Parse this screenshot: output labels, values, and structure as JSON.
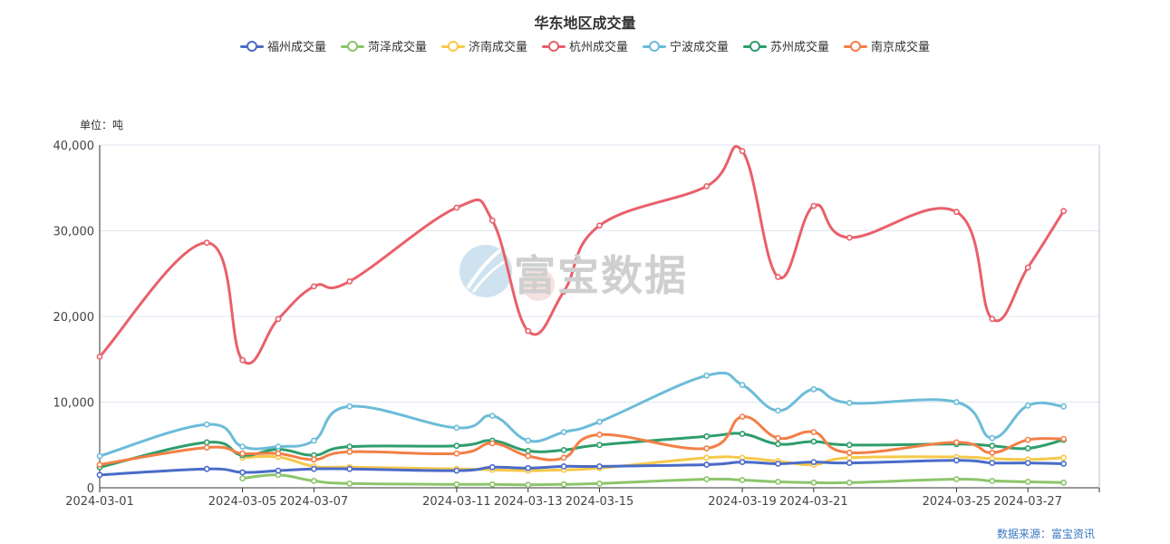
{
  "colors": [
    "#4a6bc8",
    "#8cc56b",
    "#f7c84a",
    "#e8606a",
    "#6cbcd8",
    "#2e9d6c",
    "#f27f46"
  ],
  "chart_data": {
    "type": "line",
    "title": "华东地区成交量",
    "unit_label": "单位：吨",
    "source": "数据来源：富宝资讯",
    "watermark": "富宝数据",
    "x": [
      "2024-03-01",
      "2024-03-04",
      "2024-03-05",
      "2024-03-06",
      "2024-03-07",
      "2024-03-08",
      "2024-03-11",
      "2024-03-12",
      "2024-03-13",
      "2024-03-14",
      "2024-03-15",
      "2024-03-18",
      "2024-03-19",
      "2024-03-20",
      "2024-03-21",
      "2024-03-22",
      "2024-03-25",
      "2024-03-26",
      "2024-03-27",
      "2024-03-28"
    ],
    "x_ticks": [
      "2024-03-01",
      "2024-03-05",
      "2024-03-07",
      "2024-03-11",
      "2024-03-13",
      "2024-03-15",
      "2024-03-19",
      "2024-03-21",
      "2024-03-25",
      "2024-03-27"
    ],
    "y_ticks": [
      "0",
      "10,000",
      "20,000",
      "30,000",
      "40,000"
    ],
    "ylim": [
      0,
      40000
    ],
    "legend_position": "top-center",
    "grid": true,
    "series": [
      {
        "name": "福州成交量",
        "values": [
          1500,
          2200,
          1800,
          2000,
          2200,
          2200,
          2000,
          2400,
          2300,
          2500,
          2500,
          2700,
          3000,
          2800,
          3000,
          2900,
          3200,
          2900,
          2900,
          2800
        ]
      },
      {
        "name": "菏泽成交量",
        "values": [
          null,
          null,
          1100,
          1500,
          800,
          500,
          400,
          400,
          350,
          400,
          500,
          1000,
          900,
          700,
          600,
          600,
          1000,
          800,
          700,
          600
        ]
      },
      {
        "name": "济南成交量",
        "values": [
          null,
          null,
          3500,
          3600,
          2500,
          2400,
          2200,
          2100,
          2000,
          2100,
          2300,
          3500,
          3500,
          3100,
          2700,
          3500,
          3600,
          3400,
          3300,
          3500
        ]
      },
      {
        "name": "杭州成交量",
        "values": [
          15300,
          28600,
          14900,
          19700,
          23500,
          24100,
          32700,
          31200,
          18300,
          22900,
          30600,
          35200,
          39300,
          24600,
          32900,
          29200,
          32200,
          19700,
          25700,
          32300
        ]
      },
      {
        "name": "宁波成交量",
        "values": [
          3700,
          7400,
          4800,
          4800,
          5500,
          9500,
          7000,
          8400,
          5500,
          6500,
          7700,
          13100,
          12000,
          9000,
          11500,
          9900,
          10000,
          5800,
          9600,
          9500
        ]
      },
      {
        "name": "苏州成交量",
        "values": [
          2400,
          5300,
          3800,
          4500,
          3800,
          4800,
          4900,
          5500,
          4300,
          4400,
          5000,
          6000,
          6300,
          5100,
          5400,
          5000,
          5100,
          4900,
          4600,
          5600
        ]
      },
      {
        "name": "南京成交量",
        "values": [
          2700,
          4700,
          4000,
          4000,
          3300,
          4200,
          4000,
          5200,
          3700,
          3500,
          6200,
          4600,
          8300,
          5800,
          6500,
          4100,
          5300,
          4100,
          5600,
          5700
        ]
      }
    ]
  }
}
